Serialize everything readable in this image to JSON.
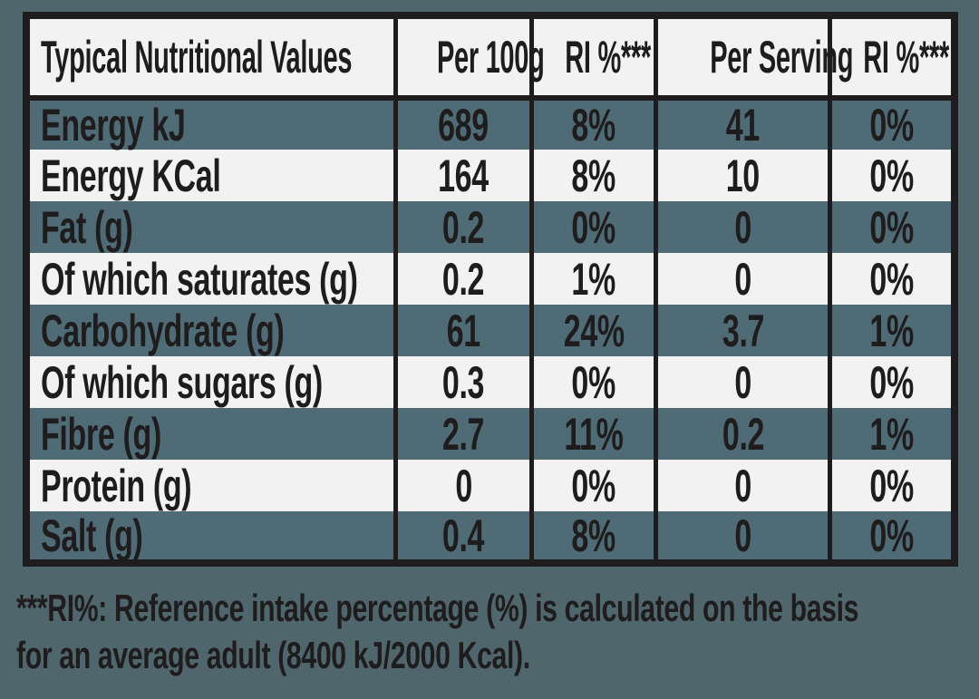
{
  "colors": {
    "page-bg": "#50666D",
    "stripe": "#4F6B76",
    "light": "#F3F2F3",
    "ink": "#1E1C1D"
  },
  "table": {
    "columns": [
      "Typical Nutritional Values",
      "Per 100g",
      "RI %***",
      "Per Serving",
      "RI %***"
    ],
    "rows": [
      {
        "label": "Energy kJ",
        "per_100g": "689",
        "ri_100g": "8%",
        "per_serving": "41",
        "ri_serving": "0%"
      },
      {
        "label": "Energy KCal",
        "per_100g": "164",
        "ri_100g": "8%",
        "per_serving": "10",
        "ri_serving": "0%"
      },
      {
        "label": "Fat (g)",
        "per_100g": "0.2",
        "ri_100g": "0%",
        "per_serving": "0",
        "ri_serving": "0%"
      },
      {
        "label": "Of which saturates (g)",
        "per_100g": "0.2",
        "ri_100g": "1%",
        "per_serving": "0",
        "ri_serving": "0%"
      },
      {
        "label": "Carbohydrate (g)",
        "per_100g": "61",
        "ri_100g": "24%",
        "per_serving": "3.7",
        "ri_serving": "1%"
      },
      {
        "label": "Of which sugars (g)",
        "per_100g": "0.3",
        "ri_100g": "0%",
        "per_serving": "0",
        "ri_serving": "0%"
      },
      {
        "label": "Fibre (g)",
        "per_100g": "2.7",
        "ri_100g": "11%",
        "per_serving": "0.2",
        "ri_serving": "1%"
      },
      {
        "label": "Protein (g)",
        "per_100g": "0",
        "ri_100g": "0%",
        "per_serving": "0",
        "ri_serving": "0%"
      },
      {
        "label": "Salt (g)",
        "per_100g": "0.4",
        "ri_100g": "8%",
        "per_serving": "0",
        "ri_serving": "0%"
      }
    ]
  },
  "footnote": {
    "line1": "***RI%: Reference intake percentage (%) is calculated on the basis",
    "line2": "for an average adult (8400 kJ/2000 Kcal)."
  }
}
